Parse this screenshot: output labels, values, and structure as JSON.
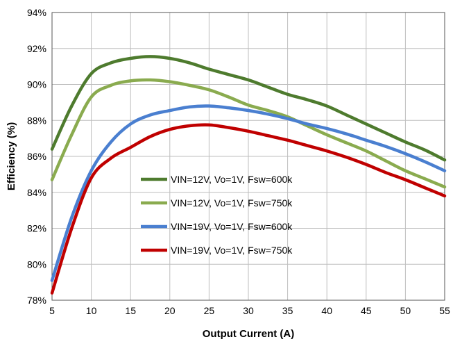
{
  "chart_data": {
    "type": "line",
    "title": "",
    "xlabel": "Output Current (A)",
    "ylabel": "Efficiency (%)",
    "xlim": [
      5,
      55
    ],
    "ylim": [
      78,
      94
    ],
    "xticks": [
      "5",
      "10",
      "15",
      "20",
      "25",
      "30",
      "35",
      "40",
      "45",
      "50",
      "55"
    ],
    "yticks": [
      "78%",
      "80%",
      "82%",
      "84%",
      "86%",
      "88%",
      "90%",
      "92%",
      "94%"
    ],
    "grid": true,
    "legend_position": "center-left",
    "series": [
      {
        "name": "VIN=12V, Vo=1V, Fsw=600k",
        "color": "#4e7b2e",
        "x": [
          5,
          7.5,
          10,
          12.5,
          15,
          17.5,
          20,
          22.5,
          25,
          27.5,
          30,
          32.5,
          35,
          37.5,
          40,
          42.5,
          45,
          47.5,
          50,
          52.5,
          55
        ],
        "y": [
          86.4,
          88.8,
          90.6,
          91.2,
          91.45,
          91.55,
          91.45,
          91.2,
          90.85,
          90.55,
          90.25,
          89.85,
          89.45,
          89.15,
          88.8,
          88.3,
          87.8,
          87.3,
          86.8,
          86.35,
          85.8
        ]
      },
      {
        "name": "VIN=12V, Vo=1V, Fsw=750k",
        "color": "#8aab4f",
        "x": [
          5,
          7.5,
          10,
          12.5,
          15,
          17.5,
          20,
          22.5,
          25,
          27.5,
          30,
          32.5,
          35,
          37.5,
          40,
          42.5,
          45,
          47.5,
          50,
          52.5,
          55
        ],
        "y": [
          84.7,
          87.2,
          89.3,
          89.95,
          90.2,
          90.25,
          90.15,
          89.95,
          89.7,
          89.3,
          88.85,
          88.55,
          88.2,
          87.7,
          87.2,
          86.75,
          86.3,
          85.75,
          85.2,
          84.75,
          84.3
        ]
      },
      {
        "name": "VIN=19V, Vo=1V, Fsw=600k",
        "color": "#4a7fd0",
        "x": [
          5,
          7.5,
          10,
          12.5,
          15,
          17.5,
          20,
          22.5,
          25,
          27.5,
          30,
          32.5,
          35,
          37.5,
          40,
          42.5,
          45,
          47.5,
          50,
          52.5,
          55
        ],
        "y": [
          79.1,
          82.6,
          85.2,
          86.8,
          87.8,
          88.3,
          88.55,
          88.75,
          88.8,
          88.7,
          88.55,
          88.35,
          88.1,
          87.8,
          87.55,
          87.25,
          86.9,
          86.55,
          86.15,
          85.7,
          85.2
        ]
      },
      {
        "name": "VIN=19V, Vo=1V, Fsw=750k",
        "color": "#c00000",
        "x": [
          5,
          7.5,
          10,
          12.5,
          15,
          17.5,
          20,
          22.5,
          25,
          27.5,
          30,
          32.5,
          35,
          37.5,
          40,
          42.5,
          45,
          47.5,
          50,
          52.5,
          55
        ],
        "y": [
          78.4,
          82.0,
          84.8,
          85.9,
          86.5,
          87.1,
          87.5,
          87.7,
          87.75,
          87.6,
          87.4,
          87.15,
          86.9,
          86.6,
          86.3,
          85.95,
          85.55,
          85.1,
          84.7,
          84.25,
          83.8
        ]
      }
    ]
  }
}
